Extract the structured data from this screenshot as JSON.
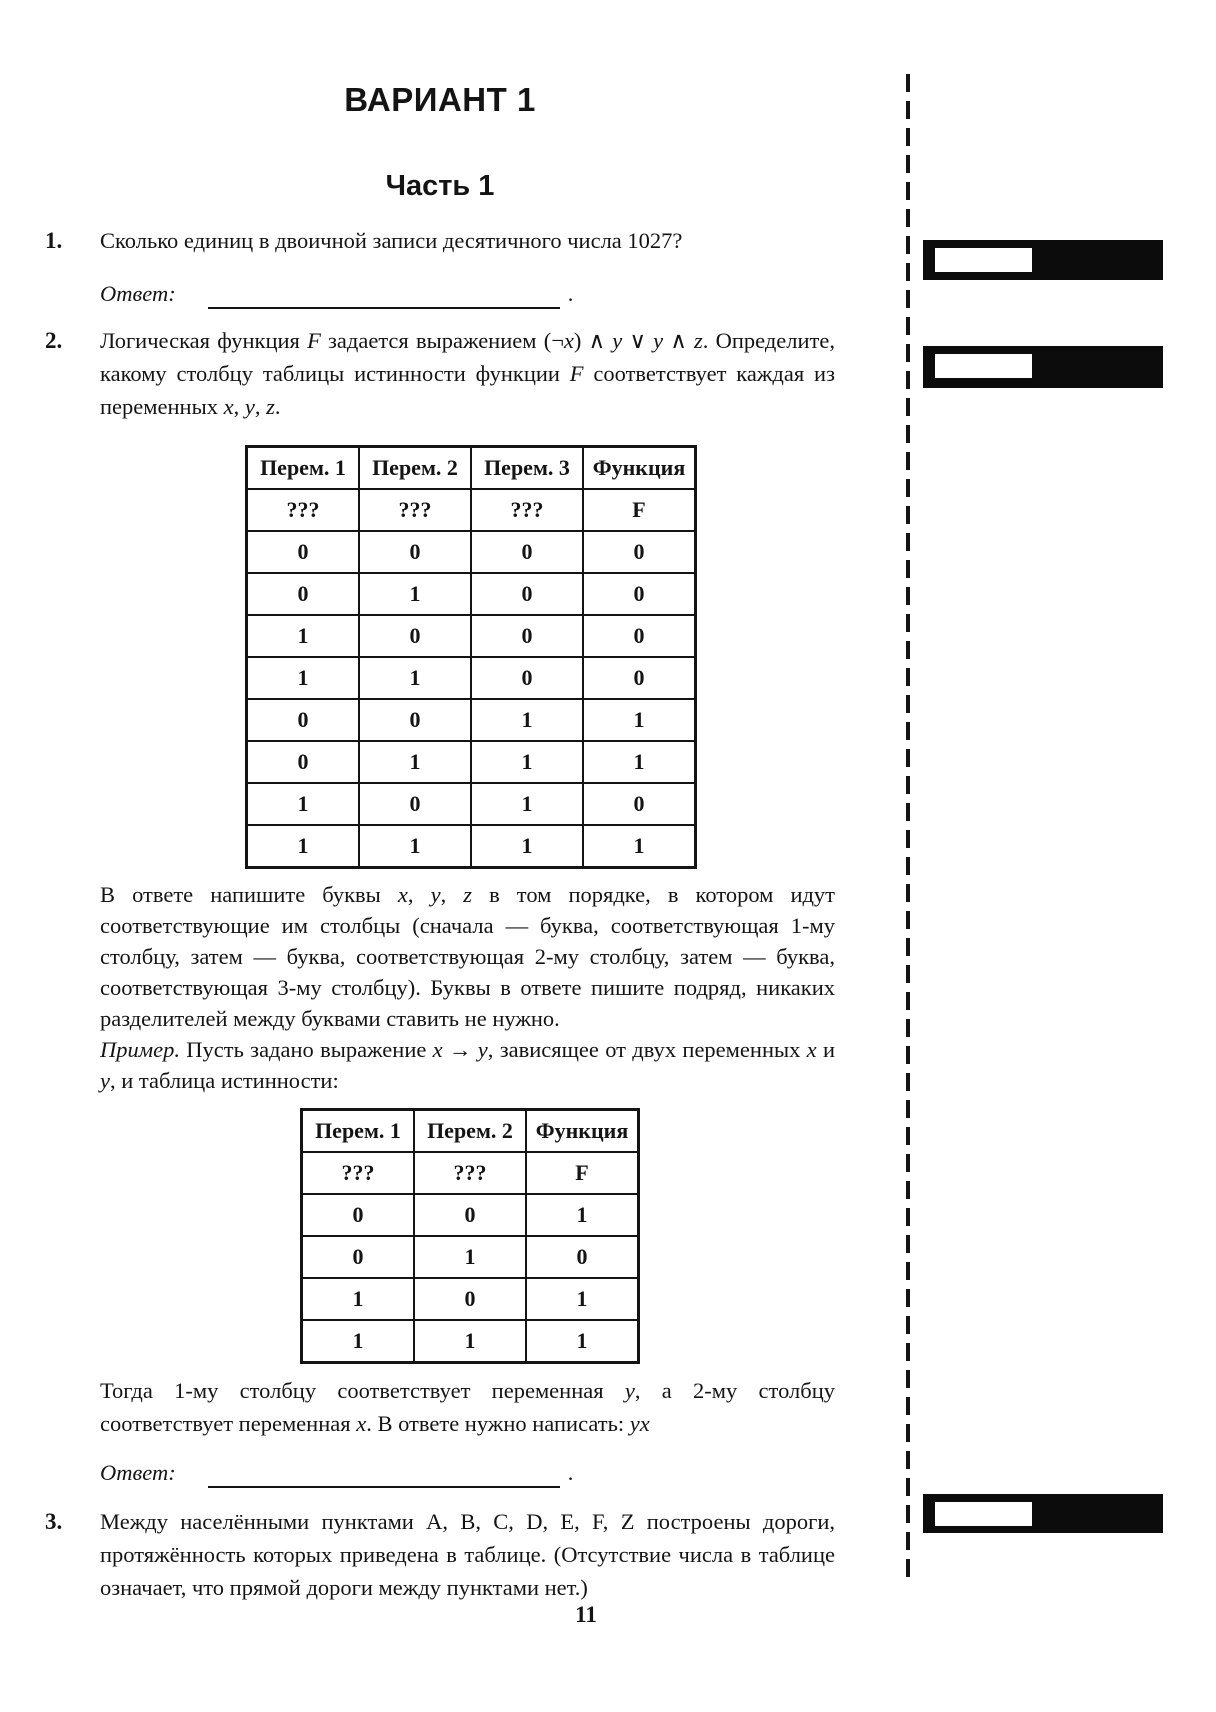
{
  "colors": {
    "paper": "#ffffff",
    "ink": "#141414",
    "margin_strip_fill": "#0c0c0c",
    "margin_strip_window": "#ffffff"
  },
  "titles": {
    "variant": "ВАРИАНТ 1",
    "part": "Часть 1"
  },
  "labels": {
    "answer": "Ответ:",
    "period": "."
  },
  "page": {
    "number": "11"
  },
  "q1": {
    "number": "1.",
    "text": [
      {
        "t": "Сколько единиц в двоичной записи десятичного числа 1027?",
        "s": "n"
      }
    ]
  },
  "q2": {
    "number": "2.",
    "intro": [
      {
        "t": "Логическая функция ",
        "s": "n"
      },
      {
        "t": "F",
        "s": "i"
      },
      {
        "t": " задается выражением (¬",
        "s": "n"
      },
      {
        "t": "x",
        "s": "i"
      },
      {
        "t": ") ∧ ",
        "s": "n"
      },
      {
        "t": "y",
        "s": "i"
      },
      {
        "t": " ∨ ",
        "s": "n"
      },
      {
        "t": "y",
        "s": "i"
      },
      {
        "t": " ∧ ",
        "s": "n"
      },
      {
        "t": "z",
        "s": "i"
      },
      {
        "t": ". Определите, какому столбцу таблицы истинности функции ",
        "s": "n"
      },
      {
        "t": "F",
        "s": "i"
      },
      {
        "t": " соответствует каждая из переменных ",
        "s": "n"
      },
      {
        "t": "x",
        "s": "i"
      },
      {
        "t": ", ",
        "s": "n"
      },
      {
        "t": "y",
        "s": "i"
      },
      {
        "t": ", ",
        "s": "n"
      },
      {
        "t": "z",
        "s": "i"
      },
      {
        "t": ".",
        "s": "n"
      }
    ],
    "table1": {
      "headers": [
        "Перем. 1",
        "Перем. 2",
        "Перем. 3",
        "Функция"
      ],
      "subheader": [
        "???",
        "???",
        "???",
        "F"
      ],
      "rows": [
        [
          "0",
          "0",
          "0",
          "0"
        ],
        [
          "0",
          "1",
          "0",
          "0"
        ],
        [
          "1",
          "0",
          "0",
          "0"
        ],
        [
          "1",
          "1",
          "0",
          "0"
        ],
        [
          "0",
          "0",
          "1",
          "1"
        ],
        [
          "0",
          "1",
          "1",
          "1"
        ],
        [
          "1",
          "0",
          "1",
          "0"
        ],
        [
          "1",
          "1",
          "1",
          "1"
        ]
      ]
    },
    "note": [
      {
        "t": "В ответе напишите буквы ",
        "s": "n"
      },
      {
        "t": "x",
        "s": "i"
      },
      {
        "t": ", ",
        "s": "n"
      },
      {
        "t": "y",
        "s": "i"
      },
      {
        "t": ", ",
        "s": "n"
      },
      {
        "t": "z",
        "s": "i"
      },
      {
        "t": " в том порядке, в котором идут соответствующие им столбцы (сначала — буква, соответствующая 1-му столбцу, затем — буква, соответствующая 2-му столбцу, затем — буква, соответствующая 3-му столбцу). Буквы в ответе пишите подряд, никаких разделителей между буквами ставить не нужно.",
        "s": "n"
      }
    ],
    "example": [
      {
        "t": "Пример.",
        "s": "i"
      },
      {
        "t": " Пусть задано выражение ",
        "s": "n"
      },
      {
        "t": "x",
        "s": "i"
      },
      {
        "t": " → ",
        "s": "n"
      },
      {
        "t": "y",
        "s": "i"
      },
      {
        "t": ", зависящее от двух переменных ",
        "s": "n"
      },
      {
        "t": "x",
        "s": "i"
      },
      {
        "t": " и ",
        "s": "n"
      },
      {
        "t": "y",
        "s": "i"
      },
      {
        "t": ", и таблица истинности:",
        "s": "n"
      }
    ],
    "table2": {
      "headers": [
        "Перем. 1",
        "Перем. 2",
        "Функция"
      ],
      "subheader": [
        "???",
        "???",
        "F"
      ],
      "rows": [
        [
          "0",
          "0",
          "1"
        ],
        [
          "0",
          "1",
          "0"
        ],
        [
          "1",
          "0",
          "1"
        ],
        [
          "1",
          "1",
          "1"
        ]
      ]
    },
    "conclusion": [
      {
        "t": "Тогда 1-му столбцу соответствует переменная ",
        "s": "n"
      },
      {
        "t": "y",
        "s": "i"
      },
      {
        "t": ", а 2-му столбцу соответствует переменная ",
        "s": "n"
      },
      {
        "t": "x",
        "s": "i"
      },
      {
        "t": ". В ответе нужно написать: ",
        "s": "n"
      },
      {
        "t": "yx",
        "s": "i"
      }
    ]
  },
  "q3": {
    "number": "3.",
    "text": [
      {
        "t": "Между населёнными пунктами A, B, C, D, E, F, Z построены дороги, протяжённость которых приведена в таблице. (Отсутствие числа в таблице означает, что прямой дороги между пунктами нет.)",
        "s": "n"
      }
    ]
  }
}
